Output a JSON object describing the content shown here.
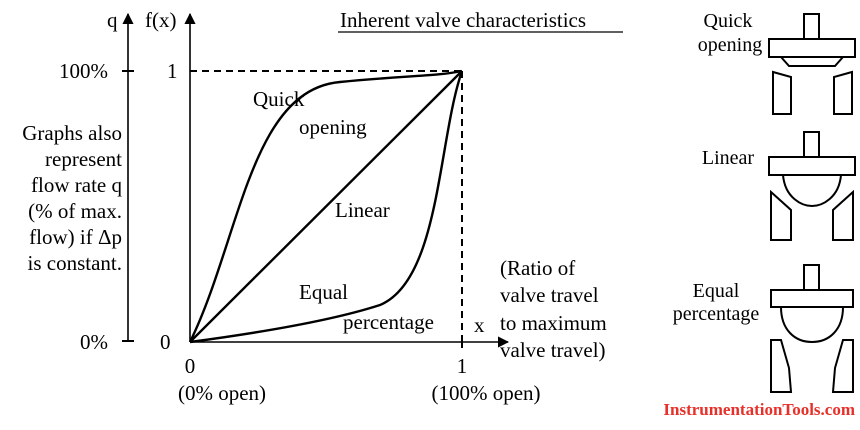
{
  "title": "Inherent valve characteristics",
  "axes": {
    "q_label": "q",
    "fx_label": "f(x)",
    "x_label": "x",
    "q_100": "100%",
    "q_0": "0%",
    "fx_1": "1",
    "fx_0": "0",
    "x_0": "0",
    "x_1": "1",
    "x_0_note": "(0% open)",
    "x_1_note": "(100% open)"
  },
  "side_note": [
    "Graphs also",
    "represent",
    "flow rate q",
    "(% of max.",
    "flow) if Δp",
    "is constant."
  ],
  "x_note": [
    "(Ratio of",
    "valve travel",
    "to maximum",
    "valve travel)"
  ],
  "curves": {
    "quick_1": "Quick",
    "quick_2": "opening",
    "linear": "Linear",
    "equal_1": "Equal",
    "equal_2": "percentage"
  },
  "valves": {
    "quick_1": "Quick",
    "quick_2": "opening",
    "linear": "Linear",
    "equal_1": "Equal",
    "equal_2": "percentage"
  },
  "brand": "InstrumentationTools.com",
  "colors": {
    "brand": "#e8302a",
    "ink": "#000000"
  }
}
